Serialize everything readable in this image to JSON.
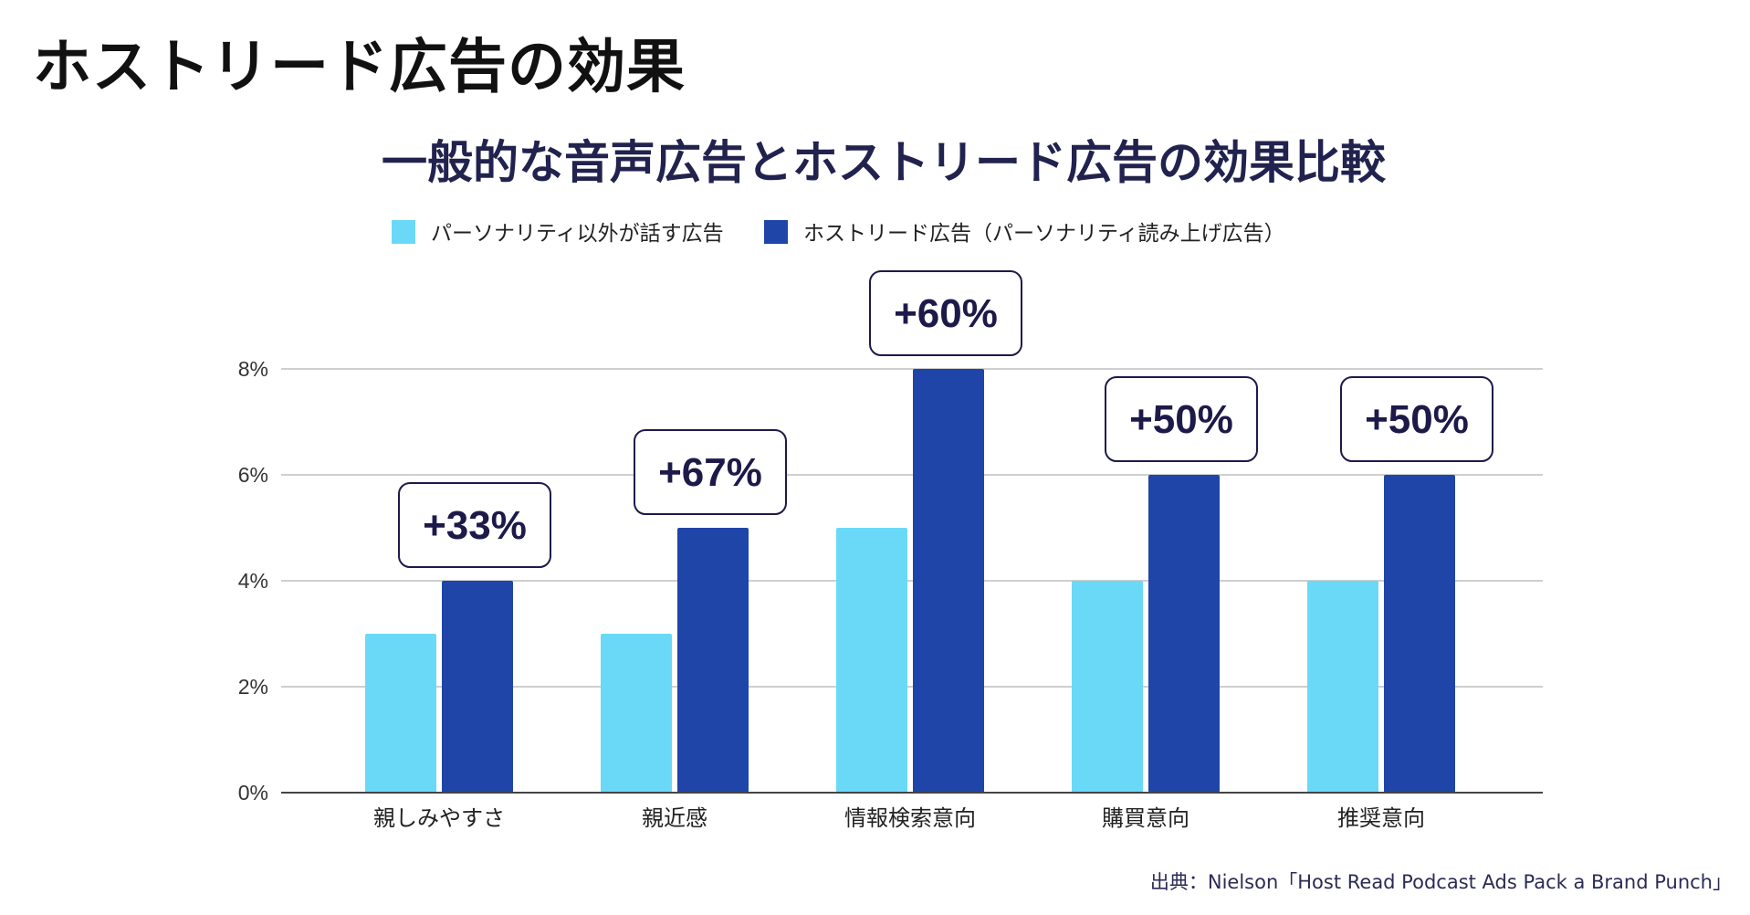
{
  "page": {
    "title": "ホストリード広告の効果",
    "source": "出典：Nielson「Host Read Podcast Ads Pack a Brand Punch」"
  },
  "colors": {
    "series_light": "#6ad9f8",
    "series_dark": "#1f45a8",
    "grid": "#cfcfcf",
    "axis": "#444444",
    "callout_border": "#1d1a4a"
  },
  "chart_data": {
    "type": "bar",
    "title": "一般的な音声広告とホストリード広告の効果比較",
    "categories": [
      "親しみやすさ",
      "親近感",
      "情報検索意向",
      "購買意向",
      "推奨意向"
    ],
    "series": [
      {
        "name": "パーソナリティ以外が話す広告",
        "values": [
          3,
          3,
          5,
          4,
          4
        ],
        "color": "#6ad9f8"
      },
      {
        "name": "ホストリード広告（パーソナリティ読み上げ広告）",
        "values": [
          4,
          5,
          8,
          6,
          6
        ],
        "color": "#1f45a8"
      }
    ],
    "annotations": [
      "+33%",
      "+67%",
      "+60%",
      "+50%",
      "+50%"
    ],
    "yticks": [
      0,
      2,
      4,
      6,
      8
    ],
    "ytick_labels": [
      "0%",
      "2%",
      "4%",
      "6%",
      "8%"
    ],
    "ylim": [
      0,
      8
    ],
    "xlabel": "",
    "ylabel": "",
    "grid": true,
    "legend": "top-center"
  }
}
